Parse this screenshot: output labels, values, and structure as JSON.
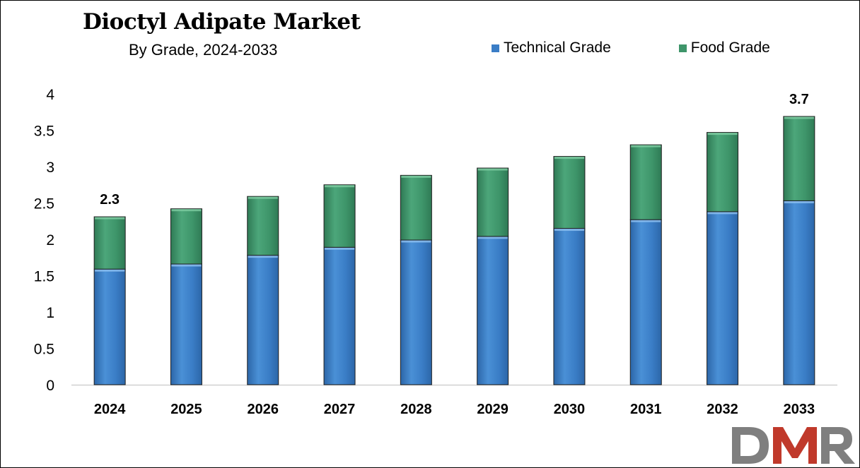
{
  "chart_data": {
    "type": "bar",
    "stacked": true,
    "title": "Dioctyl Adipate Market",
    "subtitle": "By Grade, 2024-2033",
    "categories": [
      "2024",
      "2025",
      "2026",
      "2027",
      "2028",
      "2029",
      "2030",
      "2031",
      "2032",
      "2033"
    ],
    "series": [
      {
        "name": "Technical Grade",
        "color": "#3A7DC6",
        "values": [
          1.59,
          1.66,
          1.78,
          1.89,
          1.99,
          2.04,
          2.15,
          2.27,
          2.38,
          2.53
        ]
      },
      {
        "name": "Food Grade",
        "color": "#3E956A",
        "values": [
          0.72,
          0.76,
          0.81,
          0.86,
          0.89,
          0.94,
          0.99,
          1.03,
          1.09,
          1.16
        ]
      }
    ],
    "data_labels": [
      {
        "category": "2024",
        "text": "2.3"
      },
      {
        "category": "2033",
        "text": "3.7"
      }
    ],
    "yticks": [
      "0",
      "0.5",
      "1",
      "1.5",
      "2",
      "2.5",
      "3",
      "3.5",
      "4"
    ],
    "ylim": [
      0,
      4
    ],
    "grid": false,
    "legend_position": "top-right"
  },
  "logo": {
    "text": "DMR",
    "colors": [
      "#7F7F7F",
      "#C0392B"
    ]
  }
}
